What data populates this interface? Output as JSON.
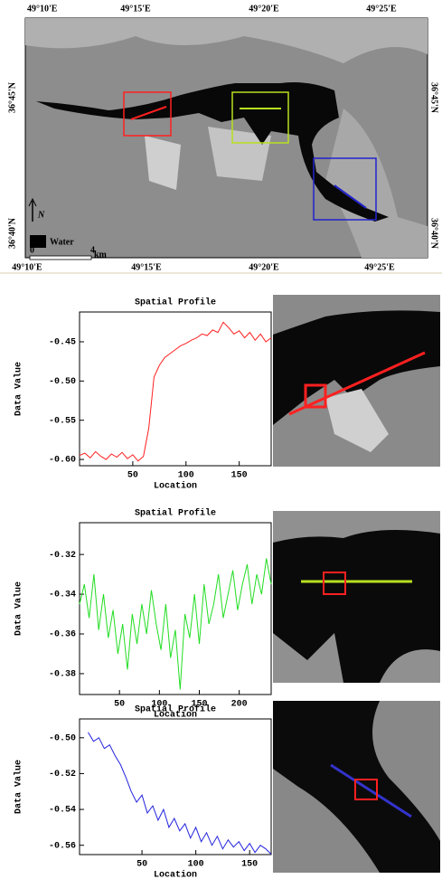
{
  "map": {
    "top_labels": [
      "49°10'E",
      "49°15'E",
      "49°20'E",
      "49°25'E"
    ],
    "bottom_labels": [
      "49°10'E",
      "49°15'E",
      "49°20'E",
      "49°25'E"
    ],
    "left_labels": [
      "36°45'N",
      "36°40'N"
    ],
    "right_labels": [
      "36°45'N",
      "36°40'N"
    ],
    "north": "N",
    "legend": "Water",
    "scale_start": "0",
    "scale_end": "4",
    "scale_unit": "km"
  },
  "chart_data": [
    {
      "type": "line",
      "title": "Spatial Profile",
      "x_label": "Location",
      "y_label": "Data Value",
      "color": "#ff2020",
      "x": [
        0,
        5,
        10,
        15,
        20,
        25,
        30,
        35,
        40,
        45,
        50,
        55,
        60,
        65,
        70,
        75,
        80,
        85,
        90,
        95,
        100,
        105,
        110,
        115,
        120,
        125,
        130,
        135,
        140,
        145,
        150,
        155,
        160,
        165,
        170,
        175,
        180
      ],
      "values": [
        -0.595,
        -0.592,
        -0.598,
        -0.59,
        -0.596,
        -0.6,
        -0.593,
        -0.597,
        -0.591,
        -0.599,
        -0.594,
        -0.602,
        -0.596,
        -0.56,
        -0.495,
        -0.48,
        -0.47,
        -0.465,
        -0.46,
        -0.455,
        -0.452,
        -0.448,
        -0.445,
        -0.44,
        -0.442,
        -0.435,
        -0.438,
        -0.425,
        -0.432,
        -0.44,
        -0.436,
        -0.445,
        -0.438,
        -0.448,
        -0.44,
        -0.45,
        -0.445
      ],
      "xlim": [
        0,
        180
      ],
      "xticks": [
        50,
        100,
        150
      ],
      "ylim": [
        -0.608,
        -0.412
      ],
      "yticks": [
        -0.45,
        {
          "value": -0.5,
          "label": "-0.50"
        },
        -0.55,
        {
          "value": -0.6,
          "label": "-0.60"
        }
      ]
    },
    {
      "type": "line",
      "title": "Spatial Profile",
      "x_label": "Location",
      "y_label": "Data Value",
      "color": "#22dd22",
      "x": [
        0,
        6,
        12,
        18,
        24,
        30,
        36,
        42,
        48,
        54,
        60,
        66,
        72,
        78,
        84,
        90,
        96,
        102,
        108,
        114,
        120,
        126,
        132,
        138,
        144,
        150,
        156,
        162,
        168,
        174,
        180,
        186,
        192,
        198,
        204,
        210,
        216,
        222,
        228,
        234,
        240
      ],
      "values": [
        -0.345,
        -0.335,
        -0.352,
        -0.33,
        -0.358,
        -0.34,
        -0.362,
        -0.348,
        -0.37,
        -0.355,
        -0.378,
        -0.35,
        -0.365,
        -0.345,
        -0.36,
        -0.338,
        -0.355,
        -0.368,
        -0.345,
        -0.372,
        -0.358,
        -0.388,
        -0.35,
        -0.362,
        -0.34,
        -0.365,
        -0.335,
        -0.355,
        -0.345,
        -0.33,
        -0.352,
        -0.34,
        -0.328,
        -0.348,
        -0.335,
        -0.325,
        -0.345,
        -0.33,
        -0.34,
        -0.322,
        -0.335
      ],
      "xlim": [
        0,
        240
      ],
      "xticks": [
        50,
        100,
        150,
        200
      ],
      "ylim": [
        -0.3905,
        -0.304
      ],
      "yticks": [
        -0.32,
        -0.34,
        -0.36,
        -0.38
      ]
    },
    {
      "type": "line",
      "title": "Spatial Profile",
      "x_label": "Location",
      "y_label": "Data Value",
      "color": "#2222dd",
      "x": [
        0,
        5,
        10,
        15,
        20,
        25,
        30,
        35,
        40,
        45,
        50,
        55,
        60,
        65,
        70,
        75,
        80,
        85,
        90,
        95,
        100,
        105,
        110,
        115,
        120,
        125,
        130,
        135,
        140,
        145,
        150,
        155,
        160,
        165,
        170
      ],
      "values": [
        -0.497,
        -0.502,
        -0.5,
        -0.506,
        -0.504,
        -0.51,
        -0.515,
        -0.522,
        -0.53,
        -0.536,
        -0.532,
        -0.542,
        -0.538,
        -0.546,
        -0.54,
        -0.55,
        -0.545,
        -0.552,
        -0.548,
        -0.556,
        -0.55,
        -0.558,
        -0.553,
        -0.56,
        -0.555,
        -0.562,
        -0.557,
        -0.561,
        -0.558,
        -0.563,
        -0.559,
        -0.564,
        -0.56,
        -0.562,
        -0.565
      ],
      "xlim": [
        -8,
        170
      ],
      "xticks": [
        50,
        100,
        150
      ],
      "ylim": [
        -0.5652,
        -0.4895
      ],
      "yticks": [
        {
          "value": -0.5,
          "label": "-0.50"
        },
        -0.52,
        -0.54,
        -0.56
      ]
    }
  ]
}
